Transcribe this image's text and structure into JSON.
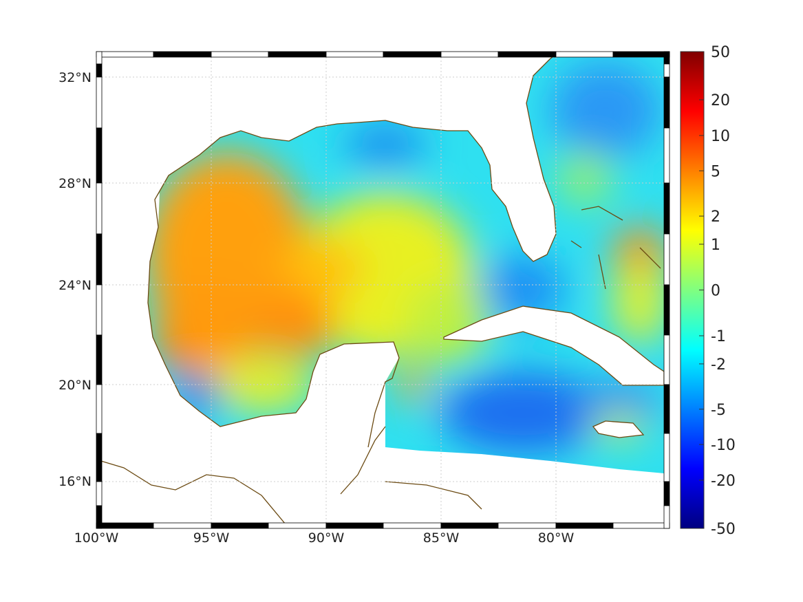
{
  "map": {
    "lat_labels": [
      "32°N",
      "28°N",
      "24°N",
      "20°N",
      "16°N"
    ],
    "lon_labels": [
      "100°W",
      "95°W",
      "90°W",
      "85°W",
      "80°W"
    ],
    "extent": {
      "lon": [
        -100,
        -75
      ],
      "lat": [
        14.2,
        33
      ]
    }
  },
  "colorbar": {
    "ticks": [
      "50",
      "20",
      "10",
      "5",
      "2",
      "1",
      "0",
      "-1",
      "-2",
      "-5",
      "-10",
      "-20",
      "-50"
    ],
    "colors": [
      "#800000",
      "#ff0000",
      "#ff8000",
      "#ffff00",
      "#80ff80",
      "#00ffff",
      "#0080ff",
      "#0000ff",
      "#000080"
    ]
  },
  "colors": {
    "coastline": "#6b4a12",
    "grid": "#cccccc"
  }
}
